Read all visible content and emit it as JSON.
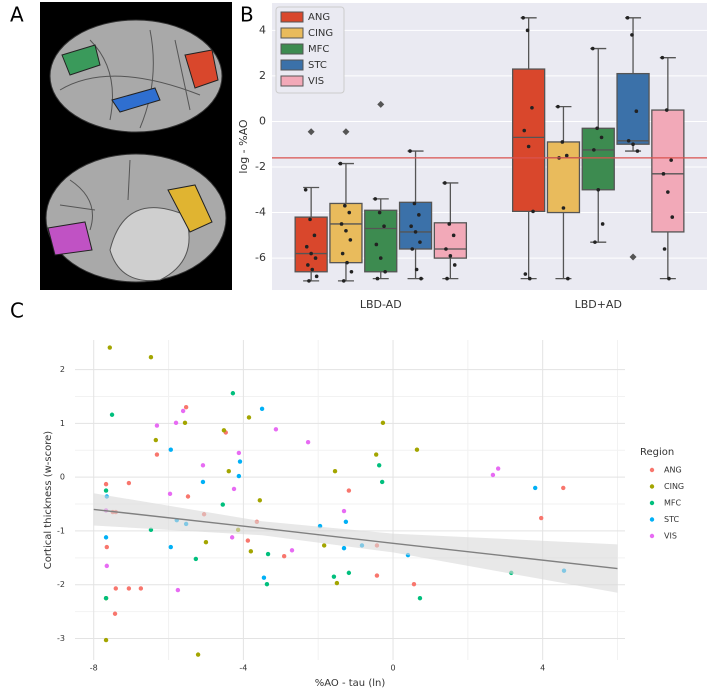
{
  "panel_labels": [
    "A",
    "B",
    "C"
  ],
  "chart_data": [
    {
      "type": "box",
      "ylabel": "log - %AO",
      "categories": [
        "LBD-AD",
        "LBD+AD"
      ],
      "ylim": [
        -7.4,
        5.2
      ],
      "yticks": [
        -6,
        -4,
        -2,
        0,
        2,
        4
      ],
      "grid": true,
      "legend": "upper left",
      "hline": -1.6,
      "hline_color": "#d9534f",
      "series": [
        {
          "name": "ANG",
          "color": "#d9472c",
          "values": [
            {
              "whislo": -7.0,
              "q1": -6.6,
              "med": -5.8,
              "q3": -4.2,
              "whishi": -2.9,
              "fliers": [
                -0.45
              ],
              "points": [
                -3.0,
                -4.3,
                -5.0,
                -5.5,
                -5.8,
                -6.0,
                -6.3,
                -6.5,
                -6.8,
                -7.0
              ]
            },
            {
              "whislo": -6.9,
              "q1": -3.95,
              "med": -0.7,
              "q3": 2.3,
              "whishi": 4.55,
              "fliers": [],
              "points": [
                4.55,
                4.0,
                0.6,
                -0.4,
                -1.1,
                -3.95,
                -6.7,
                -6.9
              ]
            }
          ]
        },
        {
          "name": "CING",
          "color": "#e9bb5c",
          "values": [
            {
              "whislo": -7.0,
              "q1": -6.2,
              "med": -4.5,
              "q3": -3.6,
              "whishi": -1.85,
              "fliers": [
                -0.45
              ],
              "points": [
                -1.85,
                -3.7,
                -4.0,
                -4.5,
                -4.8,
                -5.2,
                -5.8,
                -6.2,
                -6.6,
                -7.0
              ]
            },
            {
              "whislo": -6.9,
              "q1": -4.0,
              "med": -1.6,
              "q3": -0.9,
              "whishi": 0.65,
              "fliers": [],
              "points": [
                0.65,
                -0.9,
                -1.5,
                -1.6,
                -3.8,
                -6.9
              ]
            }
          ]
        },
        {
          "name": "MFC",
          "color": "#3d8b50",
          "values": [
            {
              "whislo": -6.9,
              "q1": -6.6,
              "med": -4.7,
              "q3": -3.9,
              "whishi": -3.4,
              "fliers": [
                0.75
              ],
              "points": [
                -3.4,
                -4.0,
                -4.6,
                -5.4,
                -6.0,
                -6.6,
                -6.9
              ]
            },
            {
              "whislo": -5.3,
              "q1": -3.0,
              "med": -1.25,
              "q3": -0.3,
              "whishi": 3.2,
              "fliers": [],
              "points": [
                3.2,
                -0.3,
                -0.7,
                -1.25,
                -3.0,
                -4.5,
                -5.3
              ]
            }
          ]
        },
        {
          "name": "STC",
          "color": "#3b71a9",
          "values": [
            {
              "whislo": -6.9,
              "q1": -5.6,
              "med": -4.85,
              "q3": -3.55,
              "whishi": -1.3,
              "fliers": [],
              "points": [
                -1.3,
                -3.6,
                -4.1,
                -4.6,
                -4.85,
                -5.3,
                -5.6,
                -6.5,
                -6.9
              ]
            },
            {
              "whislo": -1.3,
              "q1": -1.0,
              "med": -0.85,
              "q3": 2.1,
              "whishi": 4.55,
              "fliers": [
                -5.95
              ],
              "points": [
                4.55,
                3.8,
                0.45,
                -0.85,
                -1.0,
                -1.3
              ]
            }
          ]
        },
        {
          "name": "VIS",
          "color": "#f2a9b8",
          "values": [
            {
              "whislo": -6.9,
              "q1": -6.0,
              "med": -5.6,
              "q3": -4.45,
              "whishi": -2.7,
              "fliers": [],
              "points": [
                -2.7,
                -4.5,
                -5.0,
                -5.6,
                -5.9,
                -6.3,
                -6.9
              ]
            },
            {
              "whislo": -6.9,
              "q1": -4.85,
              "med": -2.3,
              "q3": 0.5,
              "whishi": 2.8,
              "fliers": [],
              "points": [
                2.8,
                0.5,
                -1.7,
                -2.3,
                -3.1,
                -4.2,
                -5.6,
                -6.9
              ]
            }
          ]
        }
      ]
    },
    {
      "type": "scatter",
      "xlabel": "%AO - tau (ln)",
      "ylabel": "Cortical thickness (w-score)",
      "legend_title": "Region",
      "legend": "right",
      "xlim": [
        -8.5,
        6.2
      ],
      "xticks": [
        -8,
        -4,
        0,
        4
      ],
      "ylim": [
        -3.4,
        2.55
      ],
      "yticks": [
        -3,
        -2,
        -1,
        0,
        1,
        2
      ],
      "grid": true,
      "fit": {
        "x": [
          -8,
          -3.5,
          0,
          6
        ],
        "y": [
          -0.6,
          -0.95,
          -1.23,
          -1.7
        ],
        "lower": [
          -0.9,
          -1.08,
          -1.4,
          -2.15
        ],
        "upper": [
          -0.3,
          -0.82,
          -1.05,
          -1.25
        ],
        "color": "#808080",
        "band_color": "#d9d9d9"
      },
      "series": [
        {
          "name": "ANG",
          "color": "#f8766d",
          "x": [
            -7.67,
            -7.49,
            -7.41,
            -7.65,
            -7.41,
            -7.06,
            -7.06,
            -6.74,
            -6.31,
            -5.53,
            -5.48,
            -5.05,
            -4.47,
            -3.88,
            -3.64,
            -2.91,
            -0.43,
            -1.18,
            -0.43,
            0.56,
            3.96,
            4.55,
            -7.43
          ],
          "y": [
            -0.13,
            -0.65,
            -0.65,
            -1.3,
            -2.07,
            -0.11,
            -2.07,
            -2.07,
            0.42,
            1.3,
            -0.36,
            -0.69,
            0.83,
            -1.18,
            -0.83,
            -1.47,
            -1.27,
            -0.25,
            -1.83,
            -1.99,
            -0.76,
            -0.2,
            -2.54
          ]
        },
        {
          "name": "CING",
          "color": "#a3a500",
          "x": [
            -7.57,
            -7.67,
            -7.67,
            -6.47,
            -6.34,
            -5.56,
            -5.21,
            -4.52,
            -4.39,
            -4.14,
            -3.85,
            -3.8,
            -3.56,
            -1.84,
            -1.55,
            -1.5,
            -0.45,
            -0.27,
            0.64,
            -5.0
          ],
          "y": [
            2.41,
            -2.25,
            -3.03,
            2.23,
            0.69,
            1.01,
            -3.3,
            0.87,
            0.11,
            -0.98,
            1.11,
            -1.38,
            -0.43,
            -1.27,
            0.11,
            -1.97,
            0.42,
            1.01,
            0.51,
            -1.21
          ]
        },
        {
          "name": "MFC",
          "color": "#00bf7d",
          "x": [
            -7.51,
            -7.67,
            -7.67,
            -6.47,
            -5.27,
            -4.28,
            -4.55,
            -3.34,
            -3.37,
            -1.58,
            -1.18,
            -0.37,
            -0.29,
            0.72,
            3.16
          ],
          "y": [
            1.16,
            -0.25,
            -2.25,
            -0.98,
            -1.52,
            1.56,
            -0.51,
            -1.43,
            -1.99,
            -1.85,
            -1.78,
            0.22,
            -0.09,
            -2.25,
            -1.78
          ]
        },
        {
          "name": "STC",
          "color": "#00b0f6",
          "x": [
            -7.65,
            -7.67,
            -5.94,
            -5.78,
            -5.53,
            -5.08,
            -4.09,
            -4.12,
            -3.5,
            -3.45,
            -1.95,
            -1.31,
            -1.26,
            -0.83,
            0.4,
            3.8,
            4.57,
            -5.94
          ],
          "y": [
            -0.36,
            -1.12,
            0.51,
            -0.8,
            -0.87,
            -0.09,
            0.29,
            0.02,
            1.27,
            -1.87,
            -0.91,
            -1.32,
            -0.83,
            -1.27,
            -1.45,
            -0.2,
            -1.74,
            -1.3
          ]
        },
        {
          "name": "VIS",
          "color": "#e76bf3",
          "x": [
            -7.67,
            -7.65,
            -6.31,
            -5.8,
            -5.61,
            -5.96,
            -5.75,
            -5.08,
            -4.12,
            -4.25,
            -3.13,
            -4.3,
            -2.7,
            -2.27,
            -1.31,
            2.67,
            2.81
          ],
          "y": [
            -0.62,
            -1.65,
            0.96,
            1.01,
            1.23,
            -0.31,
            -2.1,
            0.22,
            0.45,
            -0.22,
            0.89,
            -1.12,
            -1.36,
            0.65,
            -0.63,
            0.04,
            0.16
          ]
        }
      ]
    }
  ]
}
